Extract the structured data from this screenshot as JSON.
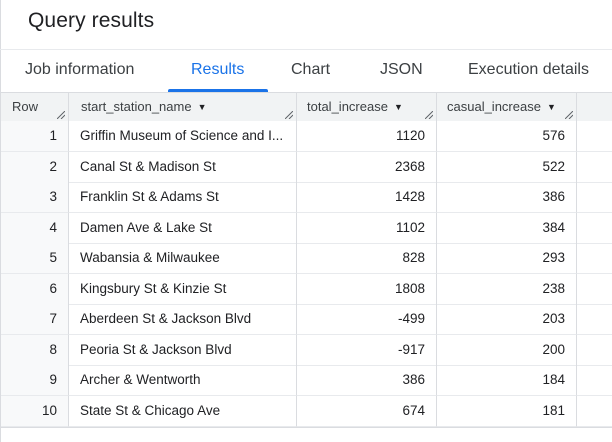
{
  "title": "Query results",
  "tabs": [
    {
      "label": "Job information"
    },
    {
      "label": "Results"
    },
    {
      "label": "Chart"
    },
    {
      "label": "JSON"
    },
    {
      "label": "Execution details"
    }
  ],
  "active_tab": "Results",
  "table": {
    "columns": [
      {
        "label": "Row"
      },
      {
        "label": "start_station_name"
      },
      {
        "label": "total_increase"
      },
      {
        "label": "casual_increase"
      }
    ],
    "rows": [
      {
        "row": "1",
        "start_station_name": "Griffin Museum of Science and I...",
        "total_increase": "1120",
        "casual_increase": "576"
      },
      {
        "row": "2",
        "start_station_name": "Canal St & Madison St",
        "total_increase": "2368",
        "casual_increase": "522"
      },
      {
        "row": "3",
        "start_station_name": "Franklin St & Adams St",
        "total_increase": "1428",
        "casual_increase": "386"
      },
      {
        "row": "4",
        "start_station_name": "Damen Ave & Lake St",
        "total_increase": "1102",
        "casual_increase": "384"
      },
      {
        "row": "5",
        "start_station_name": "Wabansia & Milwaukee",
        "total_increase": "828",
        "casual_increase": "293"
      },
      {
        "row": "6",
        "start_station_name": "Kingsbury St & Kinzie St",
        "total_increase": "1808",
        "casual_increase": "238"
      },
      {
        "row": "7",
        "start_station_name": "Aberdeen St & Jackson Blvd",
        "total_increase": "-499",
        "casual_increase": "203"
      },
      {
        "row": "8",
        "start_station_name": "Peoria St & Jackson Blvd",
        "total_increase": "-917",
        "casual_increase": "200"
      },
      {
        "row": "9",
        "start_station_name": "Archer & Wentworth",
        "total_increase": "386",
        "casual_increase": "184"
      },
      {
        "row": "10",
        "start_station_name": "State St & Chicago Ave",
        "total_increase": "674",
        "casual_increase": "181"
      }
    ]
  },
  "colors": {
    "accent": "#1a73e8",
    "header_bg": "#f1f3f4",
    "row_number_bg": "#f8f9fa",
    "border": "#dadce0"
  },
  "icons": {
    "sort": "arrow-drop-down-icon",
    "resize": "column-resize-grip-icon"
  }
}
